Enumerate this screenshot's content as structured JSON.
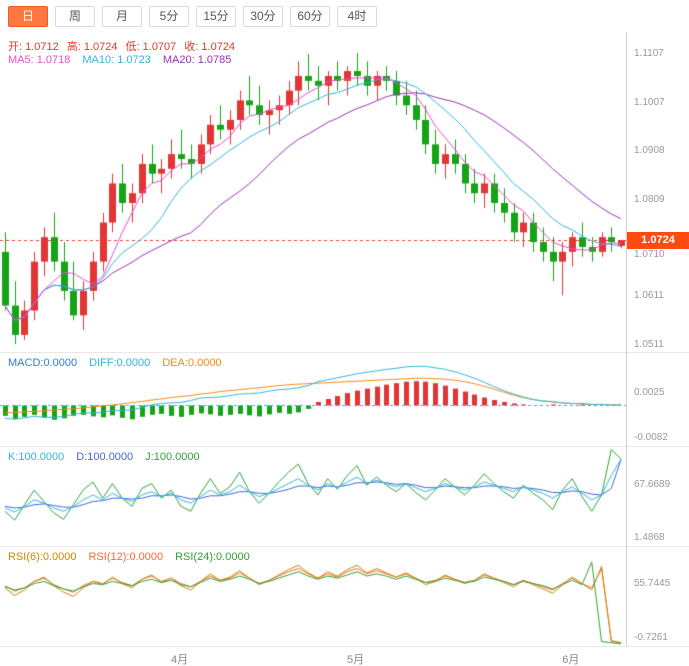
{
  "colors": {
    "up": "#e23535",
    "down": "#17a317",
    "ma5": "#e84fd0",
    "ma10": "#2fb7dc",
    "ma20": "#9933bb",
    "diff": "#2fb7dc",
    "dea": "#ff8811",
    "k": "#2fb7dc",
    "d": "#4466dd",
    "j": "#2fa337",
    "rsi6": "#cc8800",
    "rsi12": "#ff6633",
    "rsi24": "#2fa337",
    "current_price_line": "#ff3b30",
    "price_tag_bg": "#ff4a10",
    "zero_line": "#2fb7dc",
    "active_tab_bg": "#ff7741"
  },
  "toolbar": {
    "tabs": [
      {
        "name": "tab-day",
        "label": "日",
        "active": true
      },
      {
        "name": "tab-week",
        "label": "周",
        "active": false
      },
      {
        "name": "tab-month",
        "label": "月",
        "active": false
      },
      {
        "name": "tab-5min",
        "label": "5分",
        "active": false
      },
      {
        "name": "tab-15min",
        "label": "15分",
        "active": false
      },
      {
        "name": "tab-30min",
        "label": "30分",
        "active": false
      },
      {
        "name": "tab-60min",
        "label": "60分",
        "active": false
      },
      {
        "name": "tab-4hour",
        "label": "4时",
        "active": false
      }
    ]
  },
  "main_panel": {
    "ohlc_items": [
      "开: 1.0712",
      "高: 1.0724",
      "低: 1.0707",
      "收: 1.0724"
    ],
    "ma_items": [
      "MA5: 1.0718",
      "MA10: 1.0723",
      "MA20: 1.0785"
    ],
    "axis_ticks": [
      {
        "label": "1.1107",
        "value": 1.1107
      },
      {
        "label": "1.1007",
        "value": 1.1007
      },
      {
        "label": "1.0908",
        "value": 1.0908
      },
      {
        "label": "1.0809",
        "value": 1.0809
      },
      {
        "label": "1.0710",
        "value": 1.071
      },
      {
        "label": "1.0611",
        "value": 1.0611
      },
      {
        "label": "1.0511",
        "value": 1.0511
      }
    ],
    "current_price_label": "1.0724"
  },
  "macd_panel": {
    "items": [
      "MACD:0.0000",
      "DIFF:0.0000",
      "DEA:0.0000"
    ],
    "axis_ticks": [
      {
        "label": "0.0025",
        "value": 0.0025
      },
      {
        "label": "-0.0082",
        "value": -0.0082
      }
    ]
  },
  "kdj_panel": {
    "items": [
      "K:100.0000",
      "D:100.0000",
      "J:100.0000"
    ],
    "axis_ticks": [
      {
        "label": "67.6689",
        "value": 67.6689
      },
      {
        "label": "1.4868",
        "value": 1.4868
      }
    ]
  },
  "rsi_panel": {
    "items": [
      "RSI(6):0.0000",
      "RSI(12):0.0000",
      "RSI(24):0.0000"
    ],
    "axis_ticks": [
      {
        "label": "55.7445",
        "value": 55.7445
      },
      {
        "label": "-0.7261",
        "value": -0.7261
      }
    ]
  },
  "x_axis": {
    "labels": [
      "4月",
      "5月",
      "6月"
    ]
  },
  "chart_data": {
    "type": "candlestick",
    "title": "Daily candlestick chart with MACD, KDJ, RSI sub-panels",
    "price_range": {
      "min": 1.0495,
      "max": 1.115
    },
    "current_price": 1.0724,
    "x_month_labels": [
      {
        "label": "4月",
        "index": 18
      },
      {
        "label": "5月",
        "index": 36
      },
      {
        "label": "6月",
        "index": 58
      }
    ],
    "candles": [
      [
        1.07,
        1.074,
        1.058,
        1.059
      ],
      [
        1.059,
        1.064,
        1.0511,
        1.053
      ],
      [
        1.053,
        1.06,
        1.052,
        1.058
      ],
      [
        1.058,
        1.07,
        1.056,
        1.068
      ],
      [
        1.068,
        1.075,
        1.065,
        1.073
      ],
      [
        1.073,
        1.078,
        1.066,
        1.068
      ],
      [
        1.068,
        1.072,
        1.06,
        1.062
      ],
      [
        1.062,
        1.068,
        1.056,
        1.057
      ],
      [
        1.057,
        1.064,
        1.054,
        1.062
      ],
      [
        1.062,
        1.07,
        1.06,
        1.068
      ],
      [
        1.068,
        1.078,
        1.066,
        1.076
      ],
      [
        1.076,
        1.086,
        1.074,
        1.084
      ],
      [
        1.084,
        1.088,
        1.078,
        1.08
      ],
      [
        1.08,
        1.084,
        1.076,
        1.082
      ],
      [
        1.082,
        1.09,
        1.08,
        1.088
      ],
      [
        1.088,
        1.092,
        1.084,
        1.086
      ],
      [
        1.086,
        1.089,
        1.082,
        1.087
      ],
      [
        1.087,
        1.093,
        1.085,
        1.09
      ],
      [
        1.09,
        1.095,
        1.087,
        1.089
      ],
      [
        1.089,
        1.092,
        1.085,
        1.088
      ],
      [
        1.088,
        1.094,
        1.086,
        1.092
      ],
      [
        1.092,
        1.098,
        1.09,
        1.096
      ],
      [
        1.096,
        1.1,
        1.093,
        1.095
      ],
      [
        1.095,
        1.099,
        1.092,
        1.097
      ],
      [
        1.097,
        1.103,
        1.095,
        1.101
      ],
      [
        1.101,
        1.106,
        1.098,
        1.1
      ],
      [
        1.1,
        1.104,
        1.096,
        1.098
      ],
      [
        1.098,
        1.101,
        1.094,
        1.099
      ],
      [
        1.099,
        1.102,
        1.096,
        1.1
      ],
      [
        1.1,
        1.105,
        1.098,
        1.103
      ],
      [
        1.103,
        1.109,
        1.1,
        1.106
      ],
      [
        1.106,
        1.1105,
        1.103,
        1.105
      ],
      [
        1.105,
        1.108,
        1.101,
        1.104
      ],
      [
        1.104,
        1.107,
        1.1,
        1.106
      ],
      [
        1.106,
        1.109,
        1.103,
        1.105
      ],
      [
        1.105,
        1.108,
        1.102,
        1.107
      ],
      [
        1.107,
        1.1107,
        1.104,
        1.106
      ],
      [
        1.106,
        1.109,
        1.102,
        1.104
      ],
      [
        1.104,
        1.107,
        1.101,
        1.106
      ],
      [
        1.106,
        1.108,
        1.103,
        1.105
      ],
      [
        1.105,
        1.107,
        1.1,
        1.102
      ],
      [
        1.102,
        1.105,
        1.098,
        1.1
      ],
      [
        1.1,
        1.103,
        1.095,
        1.097
      ],
      [
        1.097,
        1.1,
        1.09,
        1.092
      ],
      [
        1.092,
        1.095,
        1.086,
        1.088
      ],
      [
        1.088,
        1.092,
        1.085,
        1.09
      ],
      [
        1.09,
        1.093,
        1.086,
        1.088
      ],
      [
        1.088,
        1.09,
        1.082,
        1.084
      ],
      [
        1.084,
        1.087,
        1.08,
        1.082
      ],
      [
        1.082,
        1.086,
        1.079,
        1.084
      ],
      [
        1.084,
        1.086,
        1.078,
        1.08
      ],
      [
        1.08,
        1.083,
        1.076,
        1.078
      ],
      [
        1.078,
        1.08,
        1.072,
        1.074
      ],
      [
        1.074,
        1.078,
        1.071,
        1.076
      ],
      [
        1.076,
        1.078,
        1.07,
        1.072
      ],
      [
        1.072,
        1.075,
        1.068,
        1.07
      ],
      [
        1.07,
        1.073,
        1.064,
        1.068
      ],
      [
        1.068,
        1.072,
        1.0611,
        1.07
      ],
      [
        1.07,
        1.074,
        1.067,
        1.073
      ],
      [
        1.073,
        1.076,
        1.069,
        1.071
      ],
      [
        1.071,
        1.073,
        1.068,
        1.07
      ],
      [
        1.07,
        1.074,
        1.069,
        1.073
      ],
      [
        1.073,
        1.075,
        1.07,
        1.072
      ],
      [
        1.0712,
        1.0724,
        1.0707,
        1.0724
      ]
    ],
    "indicators": {
      "macd": {
        "range": {
          "min": -0.0085,
          "max": 0.0105
        },
        "hist": [
          -0.0022,
          -0.0028,
          -0.0024,
          -0.002,
          -0.0025,
          -0.003,
          -0.0027,
          -0.0022,
          -0.002,
          -0.0023,
          -0.0025,
          -0.0021,
          -0.0026,
          -0.0029,
          -0.0024,
          -0.002,
          -0.0018,
          -0.0022,
          -0.0024,
          -0.002,
          -0.0017,
          -0.0019,
          -0.0022,
          -0.002,
          -0.0018,
          -0.0021,
          -0.0023,
          -0.0019,
          -0.0016,
          -0.0018,
          -0.0015,
          -0.0008,
          0.0006,
          0.0012,
          0.0018,
          0.0024,
          0.0029,
          0.0033,
          0.0037,
          0.0041,
          0.0044,
          0.0047,
          0.0048,
          0.0047,
          0.0044,
          0.0039,
          0.0033,
          0.0027,
          0.0021,
          0.0015,
          0.001,
          0.0006,
          0.0003,
          0.0001,
          0,
          0,
          0.0001,
          0,
          0,
          0.0001,
          0,
          0,
          0,
          0
        ],
        "dea": [
          -0.0016,
          -0.0015,
          -0.0014,
          -0.0013,
          -0.0012,
          -0.001,
          -0.0009,
          -0.0008,
          -0.0006,
          -0.0004,
          -0.0002,
          0.0,
          0.0002,
          0.0005,
          0.0007,
          0.001,
          0.0012,
          0.0015,
          0.0017,
          0.0019,
          0.0022,
          0.0024,
          0.0027,
          0.0029,
          0.0031,
          0.0033,
          0.0035,
          0.0037,
          0.0039,
          0.0041,
          0.0042,
          0.0043,
          0.0044,
          0.0045,
          0.0046,
          0.0047,
          0.0048,
          0.0049,
          0.005,
          0.0051,
          0.0052,
          0.0053,
          0.0054,
          0.0054,
          0.0053,
          0.0052,
          0.005,
          0.0047,
          0.0043,
          0.0038,
          0.0032,
          0.0026,
          0.002,
          0.0015,
          0.0011,
          0.0008,
          0.0006,
          0.0004,
          0.0003,
          0.0002,
          0.0001,
          0.0001,
          0.0,
          0.0
        ],
        "diff": [
          -0.0027,
          -0.0029,
          -0.0026,
          -0.0023,
          -0.0025,
          -0.0025,
          -0.0023,
          -0.0019,
          -0.0016,
          -0.0016,
          -0.0015,
          -0.0011,
          -0.0011,
          -0.001,
          -0.0005,
          0.0,
          0.0003,
          0.0004,
          0.0005,
          0.0009,
          0.0014,
          0.0015,
          0.0016,
          0.0019,
          0.0022,
          0.0023,
          0.0024,
          0.0028,
          0.0031,
          0.0032,
          0.0035,
          0.0039,
          0.0047,
          0.0051,
          0.0055,
          0.0059,
          0.0063,
          0.0066,
          0.0069,
          0.0072,
          0.0074,
          0.0077,
          0.0078,
          0.0078,
          0.0075,
          0.0072,
          0.0067,
          0.0061,
          0.0054,
          0.0046,
          0.0037,
          0.0029,
          0.0022,
          0.0016,
          0.0011,
          0.0008,
          0.0007,
          0.0004,
          0.0003,
          0.0003,
          0.0001,
          0.0001,
          0.0,
          0.0
        ]
      },
      "kdj": {
        "range": {
          "min": -8,
          "max": 115
        },
        "k": [
          40,
          35,
          42,
          50,
          46,
          40,
          36,
          42,
          50,
          56,
          50,
          58,
          52,
          48,
          56,
          60,
          54,
          58,
          50,
          46,
          54,
          62,
          56,
          60,
          68,
          60,
          54,
          58,
          64,
          70,
          76,
          68,
          62,
          70,
          65,
          72,
          78,
          70,
          74,
          70,
          66,
          70,
          65,
          60,
          64,
          70,
          66,
          62,
          66,
          72,
          68,
          64,
          60,
          66,
          62,
          58,
          52,
          60,
          66,
          58,
          50,
          56,
          80,
          100
        ],
        "d": [
          42,
          40,
          41,
          44,
          45,
          43,
          41,
          41,
          44,
          48,
          49,
          52,
          52,
          51,
          52,
          55,
          55,
          56,
          54,
          51,
          52,
          55,
          55,
          57,
          60,
          60,
          58,
          58,
          60,
          63,
          67,
          67,
          65,
          67,
          66,
          68,
          71,
          71,
          72,
          71,
          69,
          70,
          68,
          65,
          65,
          67,
          66,
          65,
          65,
          67,
          67,
          66,
          64,
          65,
          64,
          62,
          59,
          59,
          61,
          60,
          57,
          56,
          64,
          100
        ],
        "j": [
          36,
          25,
          44,
          62,
          48,
          34,
          26,
          44,
          62,
          72,
          52,
          70,
          52,
          42,
          64,
          70,
          52,
          62,
          42,
          36,
          58,
          76,
          58,
          66,
          84,
          60,
          46,
          58,
          72,
          84,
          94,
          70,
          56,
          76,
          63,
          80,
          92,
          68,
          78,
          68,
          60,
          70,
          59,
          50,
          62,
          76,
          66,
          56,
          68,
          82,
          70,
          60,
          52,
          68,
          58,
          50,
          38,
          62,
          76,
          54,
          36,
          56,
          112,
          100
        ]
      },
      "rsi": {
        "range": {
          "min": -3,
          "max": 90
        },
        "rsi6": [
          52,
          45,
          50,
          58,
          62,
          54,
          48,
          44,
          52,
          58,
          55,
          62,
          56,
          52,
          60,
          64,
          57,
          61,
          54,
          50,
          58,
          65,
          59,
          62,
          68,
          61,
          55,
          59,
          64,
          69,
          73,
          66,
          61,
          67,
          63,
          69,
          73,
          66,
          70,
          66,
          62,
          66,
          61,
          55,
          58,
          64,
          60,
          56,
          59,
          65,
          61,
          57,
          53,
          59,
          55,
          51,
          47,
          55,
          62,
          56,
          50,
          72,
          2,
          1
        ],
        "rsi12": [
          54,
          49,
          52,
          58,
          61,
          55,
          51,
          48,
          54,
          58,
          56,
          61,
          57,
          54,
          60,
          63,
          58,
          61,
          56,
          53,
          58,
          63,
          59,
          61,
          66,
          61,
          56,
          59,
          63,
          67,
          70,
          65,
          61,
          65,
          62,
          67,
          70,
          65,
          68,
          65,
          62,
          65,
          61,
          57,
          59,
          63,
          60,
          57,
          59,
          64,
          61,
          58,
          55,
          59,
          56,
          53,
          50,
          56,
          61,
          56,
          52,
          70,
          3,
          1
        ],
        "rsi24": [
          53,
          50,
          52,
          56,
          58,
          54,
          51,
          49,
          53,
          56,
          55,
          58,
          56,
          54,
          58,
          60,
          57,
          59,
          55,
          53,
          57,
          61,
          58,
          60,
          63,
          60,
          56,
          58,
          61,
          64,
          67,
          63,
          60,
          63,
          61,
          64,
          67,
          63,
          65,
          63,
          60,
          63,
          60,
          57,
          58,
          61,
          59,
          57,
          58,
          62,
          60,
          58,
          55,
          58,
          56,
          54,
          51,
          55,
          59,
          55,
          76,
          2,
          1,
          0
        ]
      }
    }
  }
}
